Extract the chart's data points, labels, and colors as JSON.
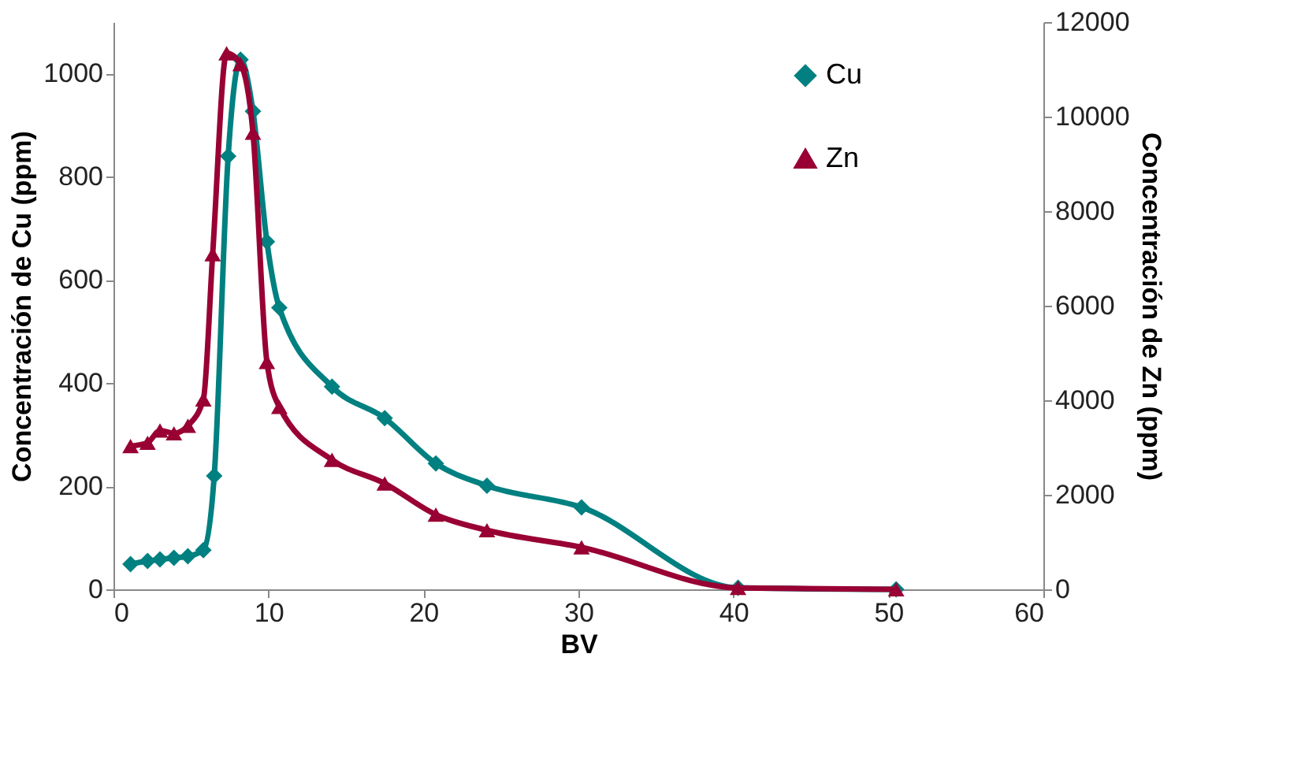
{
  "chart_data": {
    "type": "line",
    "xlabel": "BV",
    "ylabel": "Concentración de Cu (ppm)",
    "y2label": "Concentración de Zn (ppm)",
    "xlim": [
      0,
      60
    ],
    "xticks": [
      0,
      10,
      20,
      30,
      40,
      50,
      60
    ],
    "ylim": [
      0,
      1100
    ],
    "yticks": [
      0,
      200,
      400,
      600,
      800,
      1000
    ],
    "y2lim": [
      0,
      12000
    ],
    "y2ticks": [
      0,
      2000,
      4000,
      6000,
      8000,
      10000,
      12000
    ],
    "x": [
      1.1,
      2.2,
      3.0,
      3.9,
      4.8,
      5.8,
      6.5,
      7.4,
      8.2,
      9.0,
      9.9,
      10.7,
      14.1,
      17.5,
      20.8,
      24.1,
      30.2,
      40.3,
      50.5
    ],
    "series": [
      {
        "name": "Cu",
        "color": "#008080",
        "marker": "diamond",
        "values": [
          49,
          55,
          58,
          61,
          64,
          76,
          220,
          840,
          1027,
          927,
          674,
          546,
          393,
          332,
          244,
          201,
          159,
          3,
          0
        ]
      },
      {
        "name": "Zn",
        "color": "#990033",
        "marker": "triangle",
        "axis": "y2",
        "x": [
          1.1,
          2.2,
          3.0,
          3.9,
          4.8,
          5.8,
          6.4,
          7.3,
          8.2,
          9.0,
          9.9,
          10.7,
          14.1,
          17.5,
          20.8,
          24.1,
          30.2,
          40.3,
          50.5
        ],
        "values": [
          3030,
          3100,
          3360,
          3300,
          3460,
          4020,
          7090,
          11340,
          11110,
          9660,
          4810,
          3860,
          2740,
          2240,
          1580,
          1250,
          890,
          30,
          0
        ]
      }
    ],
    "legend": "top right",
    "grid": false,
    "line_style": "solid"
  }
}
